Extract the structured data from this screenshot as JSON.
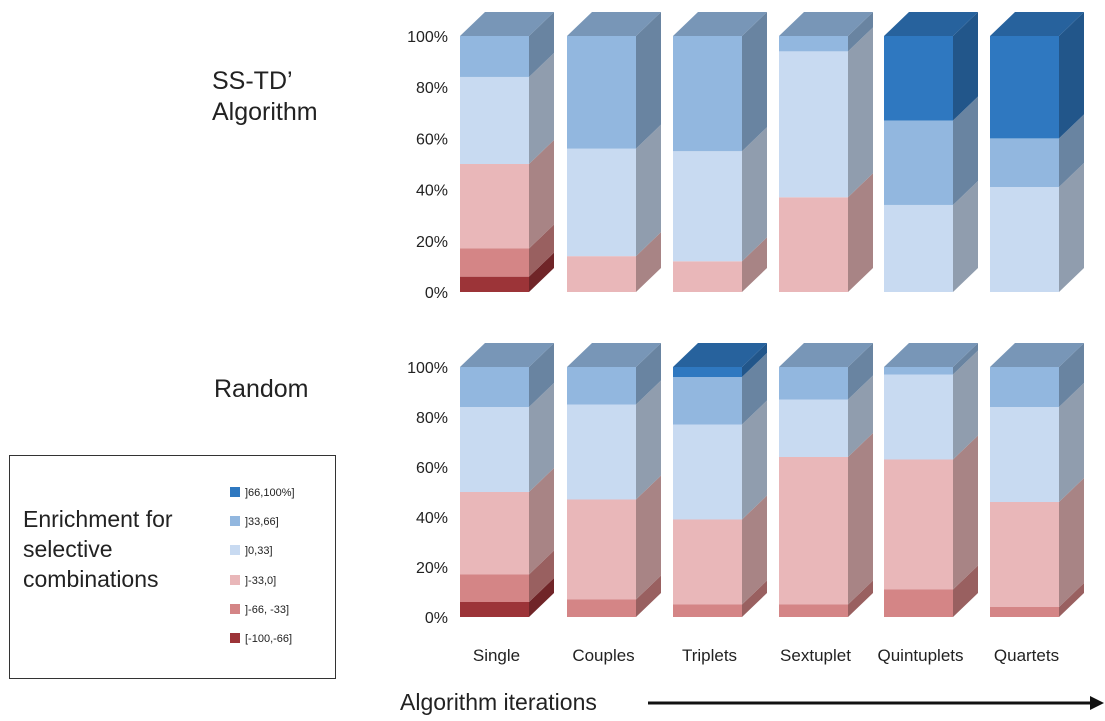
{
  "colors": {
    "]66,100%]": "#2f78c0",
    "]33,66]": "#92b7df",
    "]0,33]": "#c8daf1",
    "]-33,0]": "#e9b7b9",
    "]-66, -33]": "#d48586",
    "[-100,-66]": "#9c3438"
  },
  "legend": {
    "title": "Enrichment for selective combinations",
    "items": [
      "]66,100%]",
      "]33,66]",
      "]0,33]",
      "]-33,0]",
      "]-66, -33]",
      "[-100,-66]"
    ]
  },
  "x_title": "Algorithm iterations",
  "chart_data": [
    {
      "type": "bar",
      "stacked": true,
      "percent": true,
      "title": "SS-TD’ Algorithm",
      "categories": [
        "Single",
        "Couples",
        "Triplets",
        "Sextuplet",
        "Quintuplets",
        "Quartets"
      ],
      "series": [
        {
          "name": "[-100,-66]",
          "values": [
            6,
            0,
            0,
            0,
            0,
            0
          ]
        },
        {
          "name": "]-66, -33]",
          "values": [
            11,
            0,
            0,
            0,
            0,
            0
          ]
        },
        {
          "name": "]-33,0]",
          "values": [
            33,
            14,
            12,
            37,
            0,
            0
          ]
        },
        {
          "name": "]0,33]",
          "values": [
            34,
            42,
            43,
            57,
            34,
            41
          ]
        },
        {
          "name": "]33,66]",
          "values": [
            16,
            44,
            45,
            6,
            33,
            19
          ]
        },
        {
          "name": "]66,100%]",
          "values": [
            0,
            0,
            0,
            0,
            33,
            40
          ]
        }
      ],
      "ylim": [
        0,
        100
      ],
      "yticks": [
        "0%",
        "20%",
        "40%",
        "60%",
        "80%",
        "100%"
      ]
    },
    {
      "type": "bar",
      "stacked": true,
      "percent": true,
      "title": "Random",
      "categories": [
        "Single",
        "Couples",
        "Triplets",
        "Sextuplet",
        "Quintuplets",
        "Quartets"
      ],
      "series": [
        {
          "name": "[-100,-66]",
          "values": [
            6,
            0,
            0,
            0,
            0,
            0
          ]
        },
        {
          "name": "]-66, -33]",
          "values": [
            11,
            7,
            5,
            5,
            11,
            4
          ]
        },
        {
          "name": "]-33,0]",
          "values": [
            33,
            40,
            34,
            59,
            52,
            42
          ]
        },
        {
          "name": "]0,33]",
          "values": [
            34,
            38,
            38,
            23,
            34,
            38
          ]
        },
        {
          "name": "]33,66]",
          "values": [
            16,
            15,
            19,
            13,
            3,
            16
          ]
        },
        {
          "name": "]66,100%]",
          "values": [
            0,
            0,
            4,
            0,
            0,
            0
          ]
        }
      ],
      "ylim": [
        0,
        100
      ],
      "yticks": [
        "0%",
        "20%",
        "40%",
        "60%",
        "80%",
        "100%"
      ]
    }
  ]
}
